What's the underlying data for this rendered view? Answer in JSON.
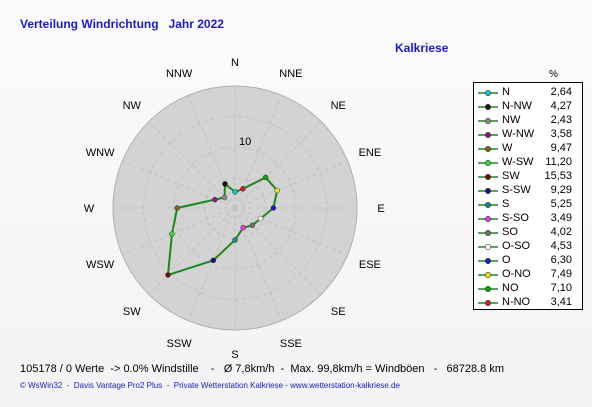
{
  "header": {
    "title": "Verteilung Windrichtung   Jahr 2022",
    "station": "Kalkriese"
  },
  "legend": {
    "unit": "%"
  },
  "chart_data": {
    "type": "radar",
    "title": "Verteilung Windrichtung   Jahr 2022",
    "directions": [
      "N",
      "NNE",
      "NE",
      "ENE",
      "E",
      "ESE",
      "SE",
      "SSE",
      "S",
      "SSW",
      "SW",
      "WSW",
      "W",
      "WNW",
      "NW",
      "NNW"
    ],
    "scale_label": "10",
    "rmax": 20,
    "series": [
      {
        "name": "N",
        "value": 2.64,
        "color": "#13c4c4"
      },
      {
        "name": "N-NW",
        "value": 4.27,
        "color": "#111111"
      },
      {
        "name": "NW",
        "value": 2.43,
        "color": "#8b8b8b"
      },
      {
        "name": "W-NW",
        "value": 3.58,
        "color": "#8a1a8a"
      },
      {
        "name": "W",
        "value": 9.47,
        "color": "#7a6a10"
      },
      {
        "name": "W-SW",
        "value": 11.2,
        "color": "#3ad63a"
      },
      {
        "name": "SW",
        "value": 15.53,
        "color": "#6b1010"
      },
      {
        "name": "S-SW",
        "value": 9.29,
        "color": "#13137a"
      },
      {
        "name": "S",
        "value": 5.25,
        "color": "#138a8a"
      },
      {
        "name": "S-SO",
        "value": 3.49,
        "color": "#e63ae6"
      },
      {
        "name": "SO",
        "value": 4.02,
        "color": "#737373"
      },
      {
        "name": "O-SO",
        "value": 4.53,
        "color": "#ffffff"
      },
      {
        "name": "O",
        "value": 6.3,
        "color": "#1a1ad6"
      },
      {
        "name": "O-NO",
        "value": 7.49,
        "color": "#e6e61a"
      },
      {
        "name": "NO",
        "value": 7.1,
        "color": "#13a013"
      },
      {
        "name": "N-NO",
        "value": 3.41,
        "color": "#d61a1a"
      }
    ],
    "rose_values": {
      "N": 2.64,
      "NNE": 3.41,
      "NE": 7.1,
      "ENE": 7.49,
      "E": 6.3,
      "ESE": 4.53,
      "SE": 4.02,
      "SSE": 3.49,
      "S": 5.25,
      "SSW": 9.29,
      "SW": 15.53,
      "WSW": 11.2,
      "W": 9.47,
      "WNW": 3.58,
      "NW": 2.43,
      "NNW": 4.27
    }
  },
  "footer": {
    "stats": "105178 / 0 Werte  -> 0.0% Windstille    -   Ø 7,8km/h  -  Max. 99,8km/h = Windböen   -   68728.8 km",
    "credit": "© WsWin32  -  Davis Vantage Pro2 Plus  -  Private Wetterstation Kalkriese - www.wetterstation-kalkriese.de"
  }
}
